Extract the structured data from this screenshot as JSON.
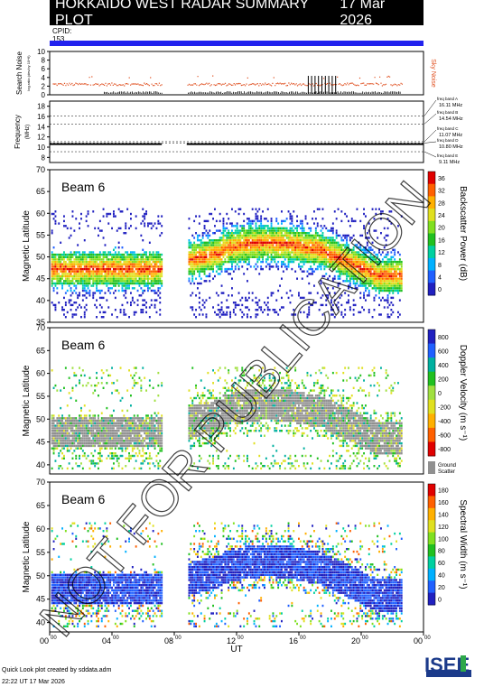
{
  "header": {
    "title": "HOKKAIDO WEST RADAR SUMMARY PLOT",
    "date": "17 Mar 2026",
    "cpid_label": "CPID:",
    "cpid_value": "153"
  },
  "noise_panel": {
    "ylabel": "Search Noise",
    "ylabel_small": "log.ratio.(dev.by 10^6)",
    "right_label": "Sky Noise",
    "yticks": [
      "10",
      "8",
      "6",
      "4",
      "2",
      "0"
    ]
  },
  "freq_panel": {
    "ylabel": "Frequency",
    "ylabel_unit": "(MHz)",
    "yticks": [
      "18",
      "16",
      "14",
      "12",
      "10",
      "8"
    ],
    "bands": [
      {
        "label": "freq band A",
        "freq": "16.11 MHz"
      },
      {
        "label": "freq band B",
        "freq": "14.54 MHz"
      },
      {
        "label": "freq band C",
        "freq": "11.07 MHz"
      },
      {
        "label": "freq band D",
        "freq": "10.80 MHz"
      },
      {
        "label": "freq band E",
        "freq": "9.11 MHz"
      }
    ]
  },
  "panels": [
    {
      "beam": "Beam  6",
      "ylabel": "Magnetic Latitude",
      "cbar_label": "Backscatter Power (dB)",
      "cbar_ticks": [
        "36",
        "32",
        "28",
        "24",
        "20",
        "16",
        "12",
        "8",
        "4",
        "0"
      ],
      "yticks": [
        "70",
        "65",
        "60",
        "55",
        "50",
        "45",
        "40",
        "35"
      ]
    },
    {
      "beam": "Beam  6",
      "ylabel": "Magnetic Latitude",
      "cbar_label": "Doppler Velocity (m s⁻¹)",
      "cbar_ticks": [
        "800",
        "600",
        "400",
        "200",
        "0",
        "-200",
        "-400",
        "-600",
        "-800"
      ],
      "yticks": [
        "70",
        "65",
        "60",
        "55",
        "50",
        "45",
        "40"
      ],
      "ground_label": "Ground",
      "scatter_label": "Scatter"
    },
    {
      "beam": "Beam  6",
      "ylabel": "Magnetic Latitude",
      "cbar_label": "Spectral Width (m s⁻¹)",
      "cbar_ticks": [
        "180",
        "160",
        "140",
        "120",
        "100",
        "80",
        "60",
        "40",
        "20",
        "0"
      ],
      "yticks": [
        "70",
        "65",
        "60",
        "55",
        "50",
        "45",
        "40"
      ]
    }
  ],
  "xaxis": {
    "ticks": [
      "00",
      "04",
      "08",
      "12",
      "16",
      "20",
      "00"
    ],
    "tick_sup": "00",
    "label": "UT"
  },
  "watermark": "NOT FOR PUBLICATION",
  "footer": {
    "line1": "Quick Look plot created by sddata.adm",
    "line2": "22:22 UT 17 Mar 2026"
  },
  "logo": {
    "text": "ISEE"
  },
  "chart_data": {
    "type": "heatmap",
    "title": "HOKKAIDO WEST RADAR SUMMARY PLOT",
    "x": {
      "label": "UT",
      "range_hours": [
        0,
        24
      ],
      "ticks": [
        "00",
        "04",
        "08",
        "12",
        "16",
        "20",
        "00"
      ]
    },
    "y": {
      "label": "Magnetic Latitude",
      "range": [
        35,
        70
      ]
    },
    "data_gap_hours": [
      7.2,
      8.8
    ],
    "series": [
      {
        "name": "Backscatter Power (dB)",
        "range": [
          0,
          36
        ]
      },
      {
        "name": "Doppler Velocity (m s⁻¹)",
        "range": [
          -800,
          800
        ]
      },
      {
        "name": "Spectral Width (m s⁻¹)",
        "range": [
          0,
          180
        ]
      }
    ],
    "colors": {
      "title_bg": "#000000",
      "cpid_bar": "#2222ee",
      "noise": "#e05020",
      "ground": "#909090"
    }
  }
}
